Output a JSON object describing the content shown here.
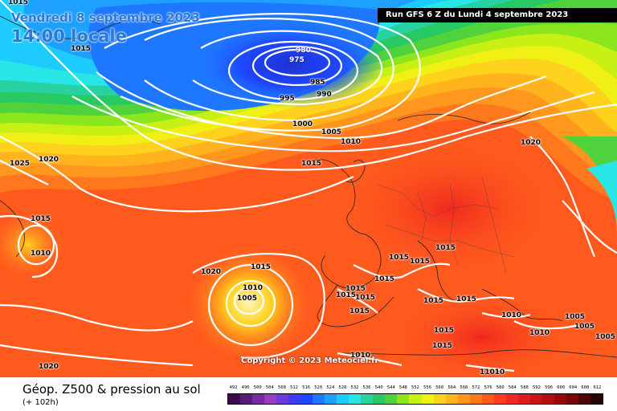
{
  "header": {
    "date_text": "Vendredi 8 septembre 2023",
    "time_text": "14:00 locale",
    "run_text": "Run GFS 6 Z du Lundi 4 septembre 2023"
  },
  "copyright": "Copyright © 2023 Meteociel.fr",
  "footer": {
    "title": "Géop. Z500 & pression au sol",
    "subtitle": "(+ 102h)"
  },
  "scale": {
    "values": [
      "492",
      "496",
      "500",
      "504",
      "508",
      "512",
      "516",
      "520",
      "524",
      "528",
      "532",
      "536",
      "540",
      "544",
      "548",
      "552",
      "556",
      "560",
      "564",
      "568",
      "572",
      "576",
      "580",
      "584",
      "588",
      "592",
      "596",
      "600",
      "604",
      "608",
      "612"
    ],
    "colors": [
      "#3b0a4f",
      "#5a1a7a",
      "#7a2aa0",
      "#9c3cc4",
      "#6a3cd8",
      "#3c3cf0",
      "#1e46ff",
      "#1e78ff",
      "#1ea0ff",
      "#1ecbff",
      "#28e6e6",
      "#28d2a0",
      "#28c864",
      "#50d23c",
      "#8ce61e",
      "#c8f014",
      "#f0f014",
      "#ffd21e",
      "#ffb41e",
      "#ff961e",
      "#ff781e",
      "#ff5a1e",
      "#ff3c1e",
      "#f0281e",
      "#dc1e1e",
      "#c81414",
      "#b40f0f",
      "#960a0a",
      "#780808",
      "#500505",
      "#280303"
    ]
  },
  "isobar_labels": [
    {
      "text": "1015",
      "low": false
    },
    {
      "text": "1015",
      "low": false
    },
    {
      "text": "980",
      "low": true
    },
    {
      "text": "975",
      "low": true
    },
    {
      "text": "985",
      "low": false
    },
    {
      "text": "990",
      "low": false
    },
    {
      "text": "995",
      "low": false
    },
    {
      "text": "1000",
      "low": false
    },
    {
      "text": "1005",
      "low": false
    },
    {
      "text": "1010",
      "low": false
    },
    {
      "text": "1015",
      "low": false
    },
    {
      "text": "1020",
      "low": false
    },
    {
      "text": "1025",
      "low": false
    },
    {
      "text": "1020",
      "low": false
    },
    {
      "text": "1015",
      "low": false
    },
    {
      "text": "1010",
      "low": false
    },
    {
      "text": "1015",
      "low": false
    },
    {
      "text": "1020",
      "low": false
    },
    {
      "text": "1010",
      "low": false
    },
    {
      "text": "1005",
      "low": false
    },
    {
      "text": "1015",
      "low": false
    },
    {
      "text": "1015",
      "low": false
    },
    {
      "text": "1015",
      "low": false
    },
    {
      "text": "1015",
      "low": false
    },
    {
      "text": "1015",
      "low": false
    },
    {
      "text": "1015",
      "low": false
    },
    {
      "text": "1015",
      "low": false
    },
    {
      "text": "1015",
      "low": false
    },
    {
      "text": "1015",
      "low": false
    },
    {
      "text": "1015",
      "low": false
    },
    {
      "text": "1010",
      "low": false
    },
    {
      "text": "1005",
      "low": false
    },
    {
      "text": "1005",
      "low": false
    },
    {
      "text": "1010",
      "low": false
    },
    {
      "text": "1005",
      "low": false
    },
    {
      "text": "1015",
      "low": false
    },
    {
      "text": "1015",
      "low": false
    },
    {
      "text": "1010",
      "low": false
    },
    {
      "text": "11010",
      "low": false
    },
    {
      "text": "1020",
      "low": false
    }
  ]
}
